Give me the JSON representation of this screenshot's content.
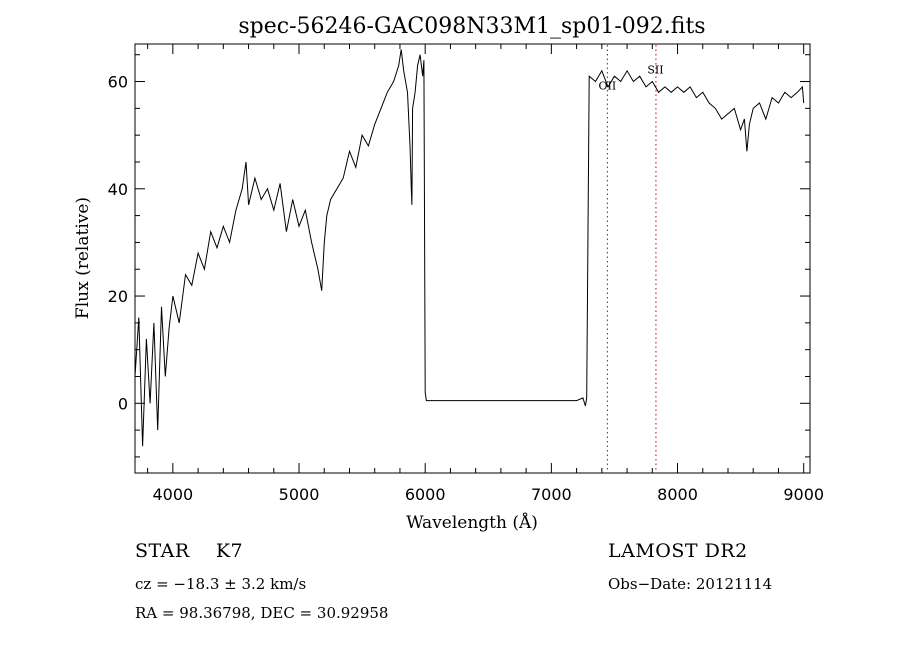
{
  "chart_data": {
    "type": "line",
    "title": "spec-56246-GAC098N33M1_sp01-092.fits",
    "xlabel": "Wavelength (Å)",
    "ylabel": "Flux (relative)",
    "xlim": [
      3700,
      9050
    ],
    "ylim": [
      -13,
      67
    ],
    "xticks": [
      4000,
      5000,
      6000,
      7000,
      8000,
      9000
    ],
    "yticks": [
      0,
      20,
      40,
      60
    ],
    "grid": false,
    "series": [
      {
        "color": "#000000",
        "x": [
          3700,
          3730,
          3760,
          3790,
          3820,
          3850,
          3880,
          3910,
          3940,
          3970,
          4000,
          4050,
          4100,
          4150,
          4200,
          4250,
          4300,
          4350,
          4400,
          4450,
          4500,
          4550,
          4580,
          4600,
          4650,
          4700,
          4750,
          4800,
          4850,
          4900,
          4950,
          5000,
          5050,
          5100,
          5150,
          5180,
          5200,
          5220,
          5250,
          5300,
          5350,
          5400,
          5450,
          5500,
          5550,
          5600,
          5650,
          5700,
          5750,
          5790,
          5810,
          5830,
          5860,
          5880,
          5890,
          5895,
          5900,
          5920,
          5940,
          5960,
          5980,
          5990,
          6000,
          6010,
          6100,
          6500,
          7000,
          7200,
          7250,
          7270,
          7280,
          7300,
          7350,
          7400,
          7450,
          7500,
          7550,
          7600,
          7650,
          7700,
          7750,
          7800,
          7850,
          7900,
          7950,
          8000,
          8050,
          8100,
          8150,
          8200,
          8250,
          8300,
          8350,
          8400,
          8450,
          8500,
          8530,
          8550,
          8570,
          8600,
          8650,
          8700,
          8750,
          8800,
          8850,
          8900,
          8950,
          8990,
          9000
        ],
        "y": [
          5,
          16,
          -8,
          12,
          0,
          15,
          -5,
          18,
          5,
          14,
          20,
          15,
          24,
          22,
          28,
          25,
          32,
          29,
          33,
          30,
          36,
          40,
          45,
          37,
          42,
          38,
          40,
          36,
          41,
          32,
          38,
          33,
          36,
          30,
          25,
          21,
          30,
          35,
          38,
          40,
          42,
          47,
          44,
          50,
          48,
          52,
          55,
          58,
          60,
          63,
          66,
          62,
          58,
          48,
          40,
          37,
          55,
          58,
          63,
          65,
          61,
          64,
          2,
          0.5,
          0.5,
          0.5,
          0.5,
          0.5,
          1,
          -0.5,
          1,
          61,
          60,
          62,
          59,
          61,
          60,
          62,
          60,
          61,
          59,
          60,
          58,
          59,
          58,
          59,
          58,
          59,
          57,
          58,
          56,
          55,
          53,
          54,
          55,
          51,
          53,
          47,
          52,
          55,
          56,
          53,
          57,
          56,
          58,
          57,
          58,
          59,
          56
        ]
      }
    ],
    "annotations": [
      {
        "label": "OII",
        "x": 7444,
        "y": 58.5
      },
      {
        "label": "SII",
        "x": 7825,
        "y": 61.5
      }
    ],
    "reference_lines": [
      {
        "x": 7444,
        "style": "dotted",
        "color": "#cc0000"
      },
      {
        "x": 7829,
        "style": "dotted",
        "color": "#cc0000"
      }
    ]
  },
  "info": {
    "object_type": "STAR",
    "subclass": "K7",
    "survey": "LAMOST DR2",
    "velocity": "cz = −18.3 ± 3.2 km/s",
    "obs_date": "Obs−Date: 20121114",
    "coords": "RA =  98.36798, DEC =  30.92958"
  }
}
